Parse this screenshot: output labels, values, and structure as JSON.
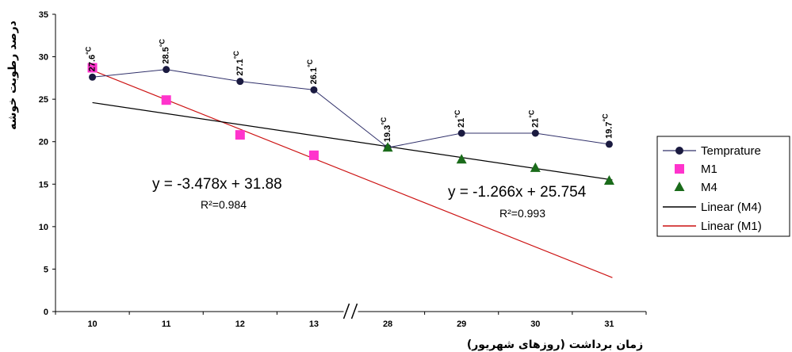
{
  "chart_data": {
    "type": "line",
    "categories": [
      "10",
      "11",
      "12",
      "13",
      "28",
      "29",
      "30",
      "31"
    ],
    "xlabel": "زمان برداشت (روزهای شهریور)",
    "ylabel": "درصد رطوبت خوشه",
    "ylim": [
      0,
      35
    ],
    "yticks": [
      "0",
      "5",
      "10",
      "15",
      "20",
      "25",
      "30",
      "35"
    ],
    "axis_break_symbol": "//",
    "grid": false,
    "legend_position": "right",
    "series": [
      {
        "name": "Temprature",
        "marker": "circle",
        "color": "#1a1a40",
        "line": true,
        "values": [
          27.6,
          28.5,
          27.1,
          26.1,
          19.3,
          21.0,
          21.0,
          19.7
        ]
      },
      {
        "name": "M1",
        "marker": "square",
        "color": "#ff33cc",
        "line": false,
        "values": [
          28.7,
          24.9,
          20.8,
          18.4,
          null,
          null,
          null,
          null
        ]
      },
      {
        "name": "M4",
        "marker": "triangle",
        "color": "#1a6b1a",
        "line": false,
        "values": [
          null,
          null,
          null,
          null,
          19.3,
          17.9,
          16.9,
          15.4
        ]
      },
      {
        "name": "Linear (M4)",
        "color": "#000000",
        "line": true,
        "start": 24.6,
        "end": 15.5
      },
      {
        "name": "Linear (M1)",
        "color": "#cc1111",
        "line": true,
        "start": 28.4,
        "end": 4.0
      }
    ],
    "point_labels": [
      {
        "value": "27.6",
        "unit": "°C"
      },
      {
        "value": "28.5",
        "unit": "°C"
      },
      {
        "value": "27.1",
        "unit": "°C"
      },
      {
        "value": "26.1",
        "unit": "°C"
      },
      {
        "value": "19.3",
        "unit": "°C"
      },
      {
        "value": "21",
        "unit": "°C"
      },
      {
        "value": "21",
        "unit": "°C"
      },
      {
        "value": "19.7",
        "unit": "°C"
      }
    ],
    "annotations": {
      "m1_equation": "y = -3.478x + 31.88",
      "m1_r2": "R²=0.984",
      "m4_equation": "y = -1.266x + 25.754",
      "m4_r2": "R²=0.993"
    }
  }
}
